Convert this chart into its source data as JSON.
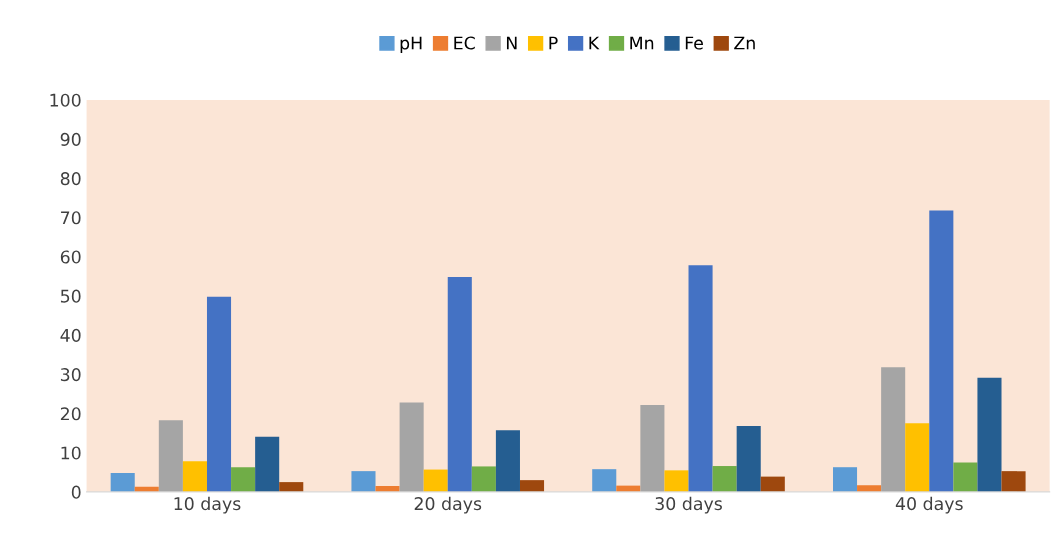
{
  "chart_data": {
    "type": "bar",
    "categories": [
      "10 days",
      "20 days",
      "30 days",
      "40 days"
    ],
    "series": [
      {
        "name": "pH",
        "color": "#5b9bd5",
        "values": [
          4.8,
          5.3,
          5.8,
          6.3
        ]
      },
      {
        "name": "EC",
        "color": "#ed7d31",
        "values": [
          1.3,
          1.5,
          1.6,
          1.7
        ]
      },
      {
        "name": "N",
        "color": "#a5a5a5",
        "values": [
          18.3,
          22.8,
          22.2,
          31.8
        ]
      },
      {
        "name": "P",
        "color": "#ffc000",
        "values": [
          7.8,
          5.7,
          5.5,
          17.5
        ]
      },
      {
        "name": "K",
        "color": "#4472c4",
        "values": [
          49.8,
          54.8,
          57.8,
          71.8
        ]
      },
      {
        "name": "Mn",
        "color": "#70ad47",
        "values": [
          6.3,
          6.5,
          6.6,
          7.5
        ]
      },
      {
        "name": "Fe",
        "color": "#255e91",
        "values": [
          14.1,
          15.7,
          16.8,
          29.1
        ]
      },
      {
        "name": "Zn",
        "color": "#9e480e",
        "values": [
          2.5,
          3.0,
          3.9,
          5.3
        ]
      }
    ],
    "ylim": [
      0,
      100
    ],
    "yticks": [
      0,
      10,
      20,
      30,
      40,
      50,
      60,
      70,
      80,
      90,
      100
    ],
    "grid": false,
    "legend": "top"
  }
}
